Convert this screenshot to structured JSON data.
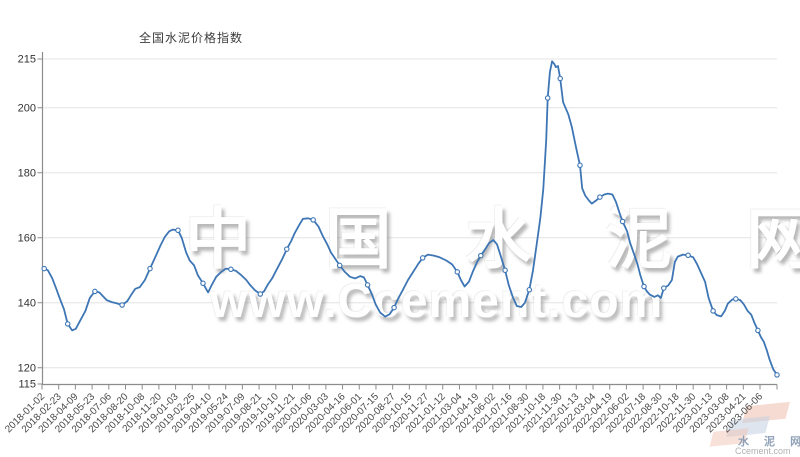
{
  "title": "全国水泥价格指数",
  "watermark": {
    "line1": "中 国 水 泥 网",
    "line2": "www.Ccement.com"
  },
  "logo": {
    "cn": "水 泥 网",
    "en": "Ccement.com"
  },
  "colors": {
    "line": "#3e76b5",
    "marker_fill": "#ffffff",
    "grid": "#e4e4e4",
    "axis": "#8c8c8c",
    "x_label": "#4a4a4a",
    "y_label": "#333333",
    "title": "#3d3d3d"
  },
  "chart_data": {
    "type": "line",
    "series_name": "全国水泥价格指数",
    "ylim": [
      115,
      215
    ],
    "y_ticks": [
      115,
      120,
      140,
      160,
      180,
      200,
      215
    ],
    "grid": "horizontal",
    "marker_every": 6,
    "x_tick_labels": [
      "2018-01-02",
      "2018-02-23",
      "2018-04-09",
      "2018-05-23",
      "2018-07-06",
      "2018-08-20",
      "2018-10-08",
      "2018-11-20",
      "2019-01-03",
      "2019-02-25",
      "2019-04-10",
      "2019-05-24",
      "2019-07-09",
      "2019-08-21",
      "2019-10-10",
      "2019-11-21",
      "2020-01-06",
      "2020-03-03",
      "2020-04-16",
      "2020-06-01",
      "2020-07-15",
      "2020-08-27",
      "2020-10-15",
      "2020-11-27",
      "2021-01-12",
      "2021-03-04",
      "2021-04-19",
      "2021-06-02",
      "2021-07-16",
      "2021-08-30",
      "2021-10-18",
      "2021-11-30",
      "2022-01-13",
      "2022-03-04",
      "2022-04-19",
      "2022-06-02",
      "2022-07-18",
      "2022-08-30",
      "2022-10-18",
      "2022-11-30",
      "2023-01-13",
      "2023-03-08",
      "2023-04-21",
      "2023-06-06"
    ],
    "points": [
      [
        0.003,
        150.5
      ],
      [
        0.008,
        150.0
      ],
      [
        0.014,
        147.5
      ],
      [
        0.019,
        144.5
      ],
      [
        0.024,
        141.5
      ],
      [
        0.03,
        138.0
      ],
      [
        0.035,
        133.5
      ],
      [
        0.041,
        131.5
      ],
      [
        0.046,
        132.0
      ],
      [
        0.052,
        134.5
      ],
      [
        0.059,
        137.5
      ],
      [
        0.065,
        141.5
      ],
      [
        0.072,
        143.5
      ],
      [
        0.078,
        143.2
      ],
      [
        0.083,
        142.0
      ],
      [
        0.088,
        140.8
      ],
      [
        0.095,
        140.2
      ],
      [
        0.102,
        139.8
      ],
      [
        0.109,
        139.3
      ],
      [
        0.116,
        140.5
      ],
      [
        0.121,
        142.3
      ],
      [
        0.127,
        144.3
      ],
      [
        0.133,
        144.8
      ],
      [
        0.14,
        147.0
      ],
      [
        0.147,
        150.5
      ],
      [
        0.154,
        154.0
      ],
      [
        0.161,
        157.5
      ],
      [
        0.167,
        160.2
      ],
      [
        0.173,
        162.0
      ],
      [
        0.178,
        162.5
      ],
      [
        0.185,
        162.3
      ],
      [
        0.19,
        160.0
      ],
      [
        0.196,
        155.5
      ],
      [
        0.201,
        153.0
      ],
      [
        0.207,
        151.5
      ],
      [
        0.212,
        148.5
      ],
      [
        0.219,
        146.0
      ],
      [
        0.226,
        143.2
      ],
      [
        0.231,
        145.5
      ],
      [
        0.237,
        148.0
      ],
      [
        0.244,
        149.5
      ],
      [
        0.25,
        150.5
      ],
      [
        0.257,
        150.3
      ],
      [
        0.264,
        149.8
      ],
      [
        0.271,
        148.5
      ],
      [
        0.278,
        147.0
      ],
      [
        0.283,
        145.5
      ],
      [
        0.29,
        143.8
      ],
      [
        0.297,
        142.7
      ],
      [
        0.302,
        143.5
      ],
      [
        0.307,
        145.5
      ],
      [
        0.313,
        147.5
      ],
      [
        0.32,
        150.5
      ],
      [
        0.327,
        153.5
      ],
      [
        0.333,
        156.5
      ],
      [
        0.339,
        159.0
      ],
      [
        0.344,
        161.5
      ],
      [
        0.35,
        164.0
      ],
      [
        0.355,
        165.8
      ],
      [
        0.362,
        166.0
      ],
      [
        0.369,
        165.5
      ],
      [
        0.376,
        163.5
      ],
      [
        0.382,
        160.5
      ],
      [
        0.388,
        158.0
      ],
      [
        0.393,
        155.5
      ],
      [
        0.399,
        153.5
      ],
      [
        0.405,
        151.5
      ],
      [
        0.412,
        149.5
      ],
      [
        0.419,
        148.0
      ],
      [
        0.426,
        147.5
      ],
      [
        0.433,
        148.2
      ],
      [
        0.438,
        147.8
      ],
      [
        0.443,
        145.5
      ],
      [
        0.449,
        142.5
      ],
      [
        0.454,
        139.5
      ],
      [
        0.46,
        137.0
      ],
      [
        0.467,
        135.7
      ],
      [
        0.473,
        136.5
      ],
      [
        0.479,
        138.5
      ],
      [
        0.484,
        141.0
      ],
      [
        0.491,
        144.0
      ],
      [
        0.498,
        147.0
      ],
      [
        0.505,
        149.5
      ],
      [
        0.512,
        152.0
      ],
      [
        0.518,
        153.8
      ],
      [
        0.525,
        154.8
      ],
      [
        0.533,
        154.5
      ],
      [
        0.541,
        154.0
      ],
      [
        0.55,
        153.0
      ],
      [
        0.558,
        151.8
      ],
      [
        0.565,
        149.5
      ],
      [
        0.57,
        147.0
      ],
      [
        0.575,
        145.0
      ],
      [
        0.581,
        146.5
      ],
      [
        0.586,
        149.5
      ],
      [
        0.592,
        152.5
      ],
      [
        0.597,
        154.5
      ],
      [
        0.603,
        156.5
      ],
      [
        0.608,
        158.3
      ],
      [
        0.614,
        159.3
      ],
      [
        0.619,
        158.0
      ],
      [
        0.624,
        154.5
      ],
      [
        0.63,
        150.0
      ],
      [
        0.635,
        145.5
      ],
      [
        0.641,
        141.5
      ],
      [
        0.646,
        139.0
      ],
      [
        0.652,
        138.7
      ],
      [
        0.657,
        140.0
      ],
      [
        0.663,
        144.0
      ],
      [
        0.668,
        150.0
      ],
      [
        0.673,
        158.0
      ],
      [
        0.678,
        166.0
      ],
      [
        0.682,
        175.0
      ],
      [
        0.686,
        190.0
      ],
      [
        0.688,
        203.0
      ],
      [
        0.691,
        211.0
      ],
      [
        0.694,
        214.3
      ],
      [
        0.697,
        213.5
      ],
      [
        0.699,
        212.5
      ],
      [
        0.702,
        212.8
      ],
      [
        0.705,
        209.0
      ],
      [
        0.709,
        201.7
      ],
      [
        0.716,
        198.0
      ],
      [
        0.721,
        194.0
      ],
      [
        0.725,
        189.5
      ],
      [
        0.728,
        186.3
      ],
      [
        0.732,
        182.3
      ],
      [
        0.735,
        175.2
      ],
      [
        0.739,
        173.0
      ],
      [
        0.744,
        171.5
      ],
      [
        0.748,
        170.5
      ],
      [
        0.754,
        171.5
      ],
      [
        0.759,
        172.5
      ],
      [
        0.765,
        173.3
      ],
      [
        0.77,
        173.6
      ],
      [
        0.776,
        173.3
      ],
      [
        0.781,
        171.0
      ],
      [
        0.786,
        167.5
      ],
      [
        0.79,
        165.0
      ],
      [
        0.796,
        162.0
      ],
      [
        0.8,
        158.5
      ],
      [
        0.804,
        156.0
      ],
      [
        0.81,
        152.0
      ],
      [
        0.814,
        148.5
      ],
      [
        0.819,
        145.0
      ],
      [
        0.823,
        143.5
      ],
      [
        0.827,
        142.5
      ],
      [
        0.833,
        141.8
      ],
      [
        0.838,
        142.3
      ],
      [
        0.842,
        141.5
      ],
      [
        0.846,
        144.5
      ],
      [
        0.852,
        145.3
      ],
      [
        0.857,
        147.0
      ],
      [
        0.861,
        152.5
      ],
      [
        0.865,
        154.2
      ],
      [
        0.872,
        154.8
      ],
      [
        0.879,
        154.6
      ],
      [
        0.886,
        154.0
      ],
      [
        0.891,
        152.0
      ],
      [
        0.897,
        149.0
      ],
      [
        0.902,
        146.5
      ],
      [
        0.907,
        141.5
      ],
      [
        0.913,
        137.5
      ],
      [
        0.918,
        136.2
      ],
      [
        0.924,
        135.8
      ],
      [
        0.929,
        137.5
      ],
      [
        0.933,
        139.7
      ],
      [
        0.939,
        141.0
      ],
      [
        0.944,
        141.2
      ],
      [
        0.95,
        140.8
      ],
      [
        0.955,
        139.5
      ],
      [
        0.96,
        137.5
      ],
      [
        0.965,
        136.3
      ],
      [
        0.97,
        133.5
      ],
      [
        0.974,
        131.5
      ],
      [
        0.978,
        129.5
      ],
      [
        0.982,
        128.0
      ],
      [
        0.986,
        125.5
      ],
      [
        0.99,
        122.5
      ],
      [
        0.995,
        119.5
      ],
      [
        1.0,
        117.8
      ]
    ]
  }
}
